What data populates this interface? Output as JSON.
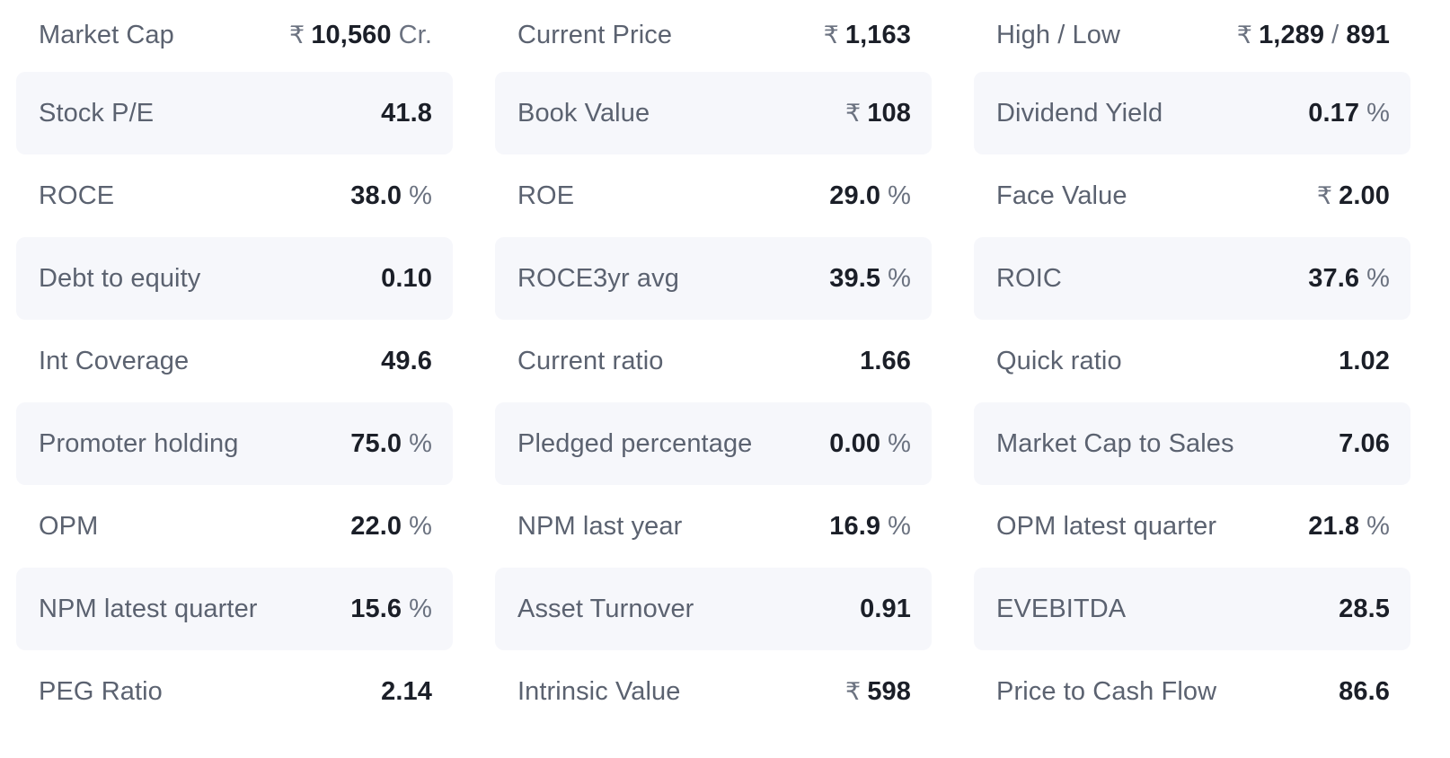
{
  "currency_symbol": "₹",
  "columns": [
    [
      {
        "label": "Market Cap",
        "prefix": "₹",
        "value": "10,560",
        "unit": "Cr."
      },
      {
        "label": "Stock P/E",
        "prefix": "",
        "value": "41.8",
        "unit": ""
      },
      {
        "label": "ROCE",
        "prefix": "",
        "value": "38.0",
        "unit": "%"
      },
      {
        "label": "Debt to equity",
        "prefix": "",
        "value": "0.10",
        "unit": ""
      },
      {
        "label": "Int Coverage",
        "prefix": "",
        "value": "49.6",
        "unit": ""
      },
      {
        "label": "Promoter holding",
        "prefix": "",
        "value": "75.0",
        "unit": "%"
      },
      {
        "label": "OPM",
        "prefix": "",
        "value": "22.0",
        "unit": "%"
      },
      {
        "label": "NPM latest quarter",
        "prefix": "",
        "value": "15.6",
        "unit": "%"
      },
      {
        "label": "PEG Ratio",
        "prefix": "",
        "value": "2.14",
        "unit": ""
      }
    ],
    [
      {
        "label": "Current Price",
        "prefix": "₹",
        "value": "1,163",
        "unit": ""
      },
      {
        "label": "Book Value",
        "prefix": "₹",
        "value": "108",
        "unit": ""
      },
      {
        "label": "ROE",
        "prefix": "",
        "value": "29.0",
        "unit": "%"
      },
      {
        "label": "ROCE3yr avg",
        "prefix": "",
        "value": "39.5",
        "unit": "%"
      },
      {
        "label": "Current ratio",
        "prefix": "",
        "value": "1.66",
        "unit": ""
      },
      {
        "label": "Pledged percentage",
        "prefix": "",
        "value": "0.00",
        "unit": "%"
      },
      {
        "label": "NPM last year",
        "prefix": "",
        "value": "16.9",
        "unit": "%"
      },
      {
        "label": "Asset Turnover",
        "prefix": "",
        "value": "0.91",
        "unit": ""
      },
      {
        "label": "Intrinsic Value",
        "prefix": "₹",
        "value": "598",
        "unit": ""
      }
    ],
    [
      {
        "label": "High / Low",
        "prefix": "₹",
        "value": "1,289",
        "separator": "/",
        "value2": "891",
        "unit": ""
      },
      {
        "label": "Dividend Yield",
        "prefix": "",
        "value": "0.17",
        "unit": "%"
      },
      {
        "label": "Face Value",
        "prefix": "₹",
        "value": "2.00",
        "unit": ""
      },
      {
        "label": "ROIC",
        "prefix": "",
        "value": "37.6",
        "unit": "%"
      },
      {
        "label": "Quick ratio",
        "prefix": "",
        "value": "1.02",
        "unit": ""
      },
      {
        "label": "Market Cap to Sales",
        "prefix": "",
        "value": "7.06",
        "unit": ""
      },
      {
        "label": "OPM latest quarter",
        "prefix": "",
        "value": "21.8",
        "unit": "%"
      },
      {
        "label": "EVEBITDA",
        "prefix": "",
        "value": "28.5",
        "unit": ""
      },
      {
        "label": "Price to Cash Flow",
        "prefix": "",
        "value": "86.6",
        "unit": ""
      }
    ]
  ]
}
